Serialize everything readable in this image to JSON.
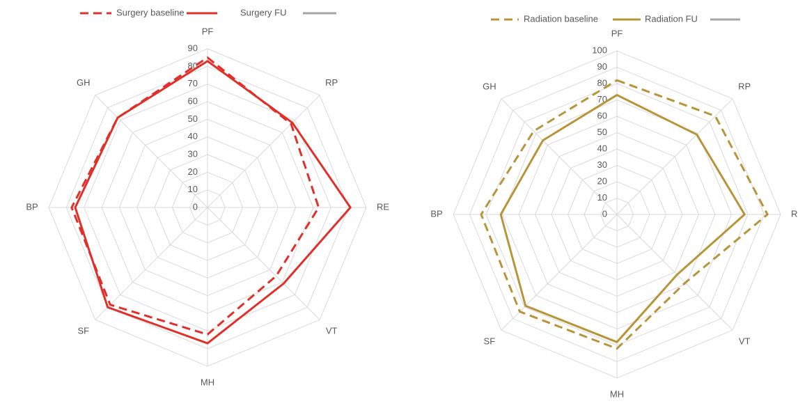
{
  "chart_data": [
    {
      "type": "radar",
      "categories": [
        "PF",
        "RP",
        "RE",
        "VT",
        "MH",
        "SF",
        "BP",
        "GH"
      ],
      "ylim": [
        0,
        90
      ],
      "yticks": [
        0,
        10,
        20,
        30,
        40,
        50,
        60,
        70,
        80,
        90
      ],
      "series": [
        {
          "name": "Surgery baseline",
          "color": "#e0302a",
          "dashed": true,
          "values": [
            85,
            67,
            63,
            55,
            72,
            78,
            77,
            72
          ]
        },
        {
          "name": "Surgery FU",
          "color": "#e0302a",
          "dashed": false,
          "values": [
            83,
            68,
            81,
            61,
            77,
            80,
            75,
            72
          ]
        }
      ]
    },
    {
      "type": "radar",
      "categories": [
        "PF",
        "RP",
        "RE",
        "VT",
        "MH",
        "SF",
        "BP",
        "GH"
      ],
      "ylim": [
        0,
        100
      ],
      "yticks": [
        0,
        10,
        20,
        30,
        40,
        50,
        60,
        70,
        80,
        90,
        100
      ],
      "series": [
        {
          "name": "Radiation baseline",
          "color": "#b8953a",
          "dashed": true,
          "values": [
            82,
            85,
            92,
            59,
            82,
            84,
            83,
            72
          ]
        },
        {
          "name": "Radiation FU",
          "color": "#b8953a",
          "dashed": false,
          "values": [
            73,
            69,
            78,
            52,
            78,
            79,
            71,
            64
          ]
        }
      ]
    }
  ]
}
